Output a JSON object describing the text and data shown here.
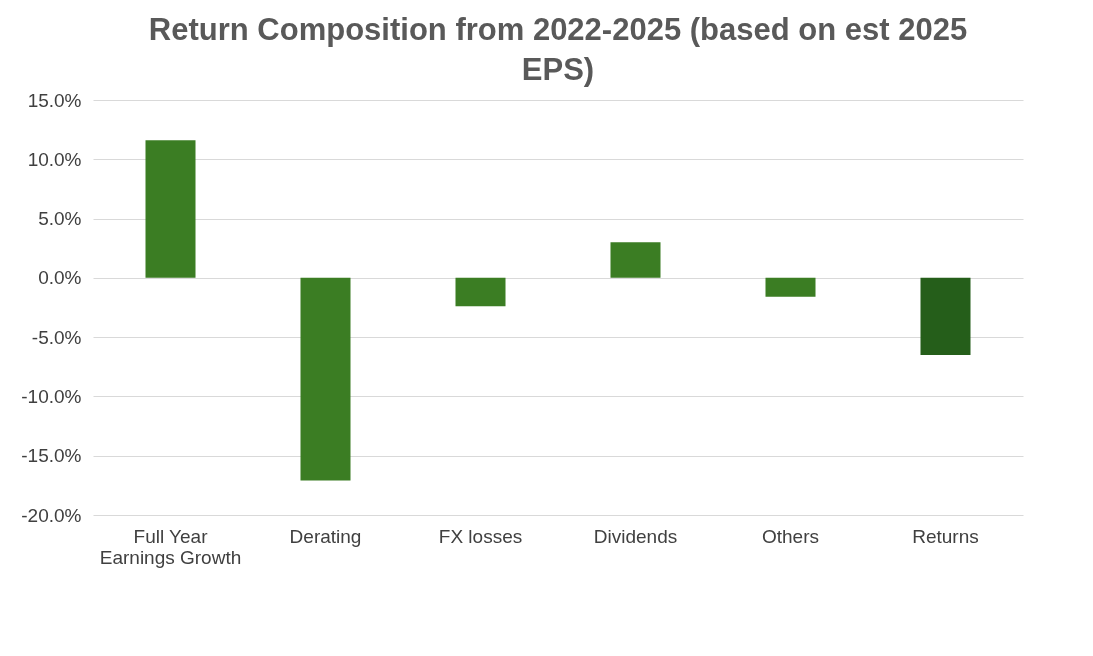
{
  "chart_data": {
    "type": "bar",
    "title": "Return Composition from 2022-2025 (based on est 2025 EPS)",
    "categories": [
      "Full Year Earnings Growth",
      "Derating",
      "FX losses",
      "Dividends",
      "Others",
      "Returns"
    ],
    "values": [
      11.6,
      -17.1,
      -2.4,
      3.0,
      -1.6,
      -6.5
    ],
    "colors": [
      "#3b7d23",
      "#3b7d23",
      "#3b7d23",
      "#3b7d23",
      "#3b7d23",
      "#255e1a"
    ],
    "ylim": [
      -20,
      15
    ],
    "yticks": [
      {
        "value": -20,
        "label": "-20.0%"
      },
      {
        "value": -15,
        "label": "-15.0%"
      },
      {
        "value": -10,
        "label": "-10.0%"
      },
      {
        "value": -5,
        "label": "-5.0%"
      },
      {
        "value": 0,
        "label": "0.0%"
      },
      {
        "value": 5,
        "label": "5.0%"
      },
      {
        "value": 10,
        "label": "10.0%"
      },
      {
        "value": 15,
        "label": "15.0%"
      }
    ],
    "grid": "y"
  }
}
